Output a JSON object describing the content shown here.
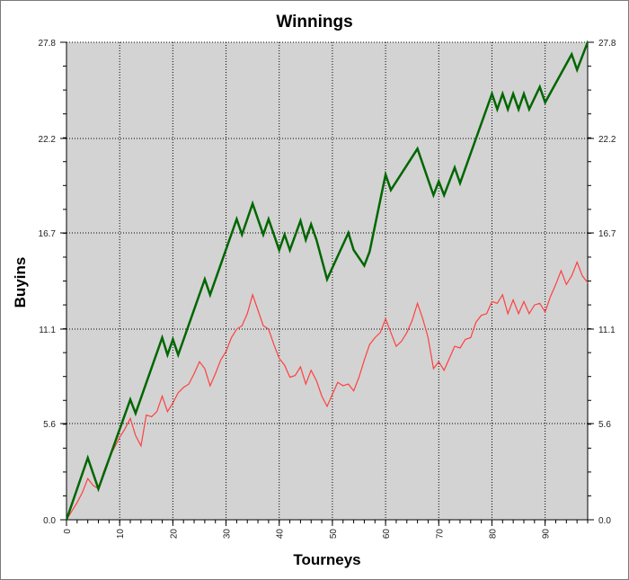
{
  "chart_data": {
    "type": "line",
    "title": "Winnings",
    "xlabel": "Tourneys",
    "ylabel": "Buyins",
    "xlim": [
      0,
      98
    ],
    "ylim": [
      0,
      27.8
    ],
    "x_ticks": [
      0,
      10,
      20,
      30,
      40,
      50,
      60,
      70,
      80,
      90
    ],
    "x_tick_labels": [
      "0",
      "10",
      "20",
      "30",
      "40",
      "50",
      "60",
      "70",
      "80",
      "90"
    ],
    "y_ticks": [
      0,
      5.6,
      11.1,
      16.7,
      22.2,
      27.8
    ],
    "y_tick_labels": [
      "0.0",
      "5.6",
      "11.1",
      "16.7",
      "22.2",
      "27.8"
    ],
    "grid": true,
    "legend": false,
    "plot_background": "#d3d3d3",
    "series": [
      {
        "color": "#006600",
        "x": [
          0,
          4,
          6,
          12,
          13,
          18,
          19,
          20,
          21,
          26,
          27,
          32,
          33,
          35,
          37,
          38,
          40,
          41,
          42,
          44,
          45,
          46,
          47,
          49,
          53,
          54,
          56,
          57,
          60,
          61,
          66,
          69,
          70,
          71,
          73,
          74,
          80,
          81,
          82,
          83,
          84,
          85,
          86,
          87,
          89,
          90,
          95,
          96,
          98,
          99
        ],
        "values": [
          0,
          3.6,
          1.8,
          7.0,
          6.2,
          10.6,
          9.6,
          10.5,
          9.6,
          14.0,
          13.1,
          17.5,
          16.6,
          18.4,
          16.6,
          17.5,
          15.7,
          16.6,
          15.7,
          17.4,
          16.3,
          17.2,
          16.3,
          14.0,
          16.7,
          15.7,
          14.8,
          15.6,
          20.1,
          19.2,
          21.6,
          18.9,
          19.7,
          18.9,
          20.5,
          19.6,
          24.8,
          23.9,
          24.8,
          23.9,
          24.8,
          23.9,
          24.8,
          23.9,
          25.2,
          24.3,
          27.1,
          26.2,
          27.8,
          26.9
        ]
      },
      {
        "color": "#ff4040",
        "x": [
          0,
          2,
          3,
          4,
          5,
          6,
          7,
          8,
          9,
          10,
          11,
          12,
          13,
          14,
          15,
          16,
          17,
          18,
          19,
          20,
          21,
          22,
          23,
          24,
          25,
          26,
          27,
          28,
          29,
          30,
          31,
          32,
          33,
          34,
          35,
          36,
          37,
          38,
          39,
          40,
          41,
          42,
          43,
          44,
          45,
          46,
          47,
          48,
          49,
          50,
          51,
          52,
          53,
          54,
          55,
          56,
          57,
          58,
          59,
          60,
          61,
          62,
          63,
          64,
          65,
          66,
          67,
          68,
          69,
          70,
          71,
          72,
          73,
          74,
          75,
          76,
          77,
          78,
          79,
          80,
          81,
          82,
          83,
          84,
          85,
          86,
          87,
          88,
          89,
          90,
          91,
          92,
          93,
          94,
          95,
          96,
          97,
          98,
          99
        ],
        "values": [
          0,
          1.0,
          1.6,
          2.4,
          2.0,
          1.8,
          2.8,
          3.6,
          4.2,
          4.8,
          5.3,
          5.9,
          4.9,
          4.3,
          6.1,
          6.0,
          6.3,
          7.2,
          6.3,
          6.8,
          7.4,
          7.7,
          7.9,
          8.5,
          9.2,
          8.8,
          7.8,
          8.5,
          9.3,
          9.8,
          10.6,
          11.1,
          11.3,
          12.0,
          13.1,
          12.2,
          11.3,
          11.1,
          10.2,
          9.4,
          9.0,
          8.3,
          8.4,
          8.9,
          7.9,
          8.7,
          8.1,
          7.2,
          6.6,
          7.3,
          8.0,
          7.8,
          7.9,
          7.5,
          8.3,
          9.3,
          10.2,
          10.6,
          10.9,
          11.7,
          10.9,
          10.1,
          10.4,
          10.9,
          11.6,
          12.6,
          11.7,
          10.6,
          8.8,
          9.2,
          8.7,
          9.4,
          10.1,
          10.0,
          10.5,
          10.6,
          11.5,
          11.9,
          12.0,
          12.7,
          12.6,
          13.1,
          12.0,
          12.8,
          12.0,
          12.7,
          12.0,
          12.5,
          12.6,
          12.1,
          13.0,
          13.7,
          14.5,
          13.7,
          14.2,
          15.0,
          14.2,
          13.8,
          14.1
        ]
      }
    ]
  }
}
